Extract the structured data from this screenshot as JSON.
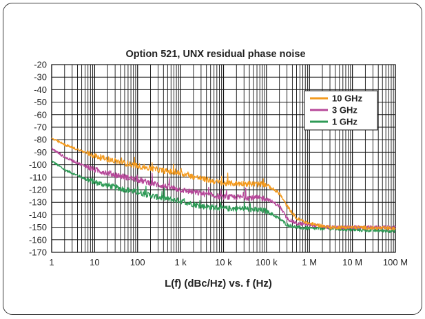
{
  "chart_data": {
    "type": "line",
    "title": "Option 521, UNX residual phase noise",
    "xlabel": "L(f) (dBc/Hz) vs. f (Hz)",
    "ylabel": "",
    "x_scale": "log",
    "xlim": [
      1,
      100000000
    ],
    "ylim": [
      -170,
      -20
    ],
    "grid": true,
    "legend_position": "top-right",
    "x_ticks": [
      {
        "value": 1,
        "label": "1"
      },
      {
        "value": 10,
        "label": "10"
      },
      {
        "value": 100,
        "label": "100"
      },
      {
        "value": 1000,
        "label": "1 k"
      },
      {
        "value": 10000,
        "label": "10 k"
      },
      {
        "value": 100000,
        "label": "100 k"
      },
      {
        "value": 1000000,
        "label": "1 M"
      },
      {
        "value": 10000000,
        "label": "10 M"
      },
      {
        "value": 100000000,
        "label": "100 M"
      }
    ],
    "y_ticks": [
      -20,
      -30,
      -40,
      -50,
      -60,
      -70,
      -80,
      -90,
      -100,
      -110,
      -120,
      -130,
      -140,
      -150,
      -160,
      -170
    ],
    "series": [
      {
        "name": "10 GHz",
        "color": "#f39a1e",
        "x": [
          1,
          2,
          5,
          10,
          30,
          100,
          300,
          1000,
          3000,
          10000,
          30000,
          100000,
          200000,
          300000,
          500000,
          1000000,
          3000000,
          10000000,
          100000000
        ],
        "y": [
          -79,
          -84,
          -89,
          -93,
          -97,
          -101,
          -104,
          -107,
          -111,
          -115,
          -115,
          -116,
          -123,
          -133,
          -143,
          -147,
          -150,
          -150,
          -151
        ]
      },
      {
        "name": "3 GHz",
        "color": "#b7489a",
        "x": [
          1,
          2,
          5,
          10,
          30,
          100,
          300,
          1000,
          3000,
          10000,
          30000,
          100000,
          200000,
          300000,
          500000,
          1000000,
          3000000,
          10000000,
          100000000
        ],
        "y": [
          -87,
          -94,
          -100,
          -104,
          -108,
          -112,
          -116,
          -120,
          -123,
          -126,
          -126,
          -127,
          -133,
          -143,
          -147,
          -148,
          -150,
          -150,
          -150
        ]
      },
      {
        "name": "1 GHz",
        "color": "#2e9a56",
        "x": [
          1,
          2,
          5,
          10,
          30,
          100,
          300,
          1000,
          3000,
          10000,
          30000,
          100000,
          200000,
          300000,
          500000,
          1000000,
          3000000,
          10000000,
          100000000
        ],
        "y": [
          -97,
          -104,
          -110,
          -114,
          -118,
          -122,
          -126,
          -129,
          -133,
          -135,
          -135,
          -137,
          -143,
          -148,
          -150,
          -151,
          -151,
          -152,
          -153
        ]
      }
    ]
  }
}
